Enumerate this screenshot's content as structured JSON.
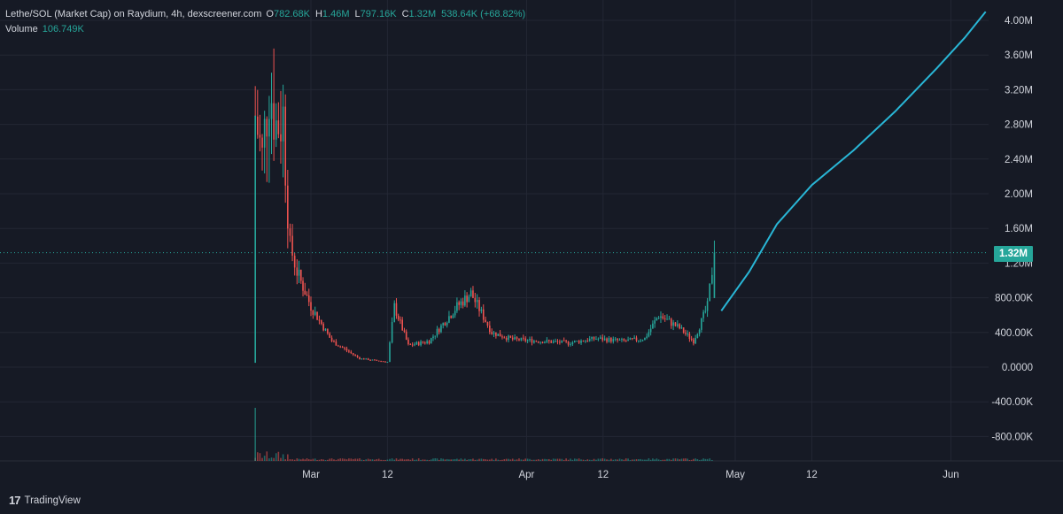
{
  "legend": {
    "title": "Lethe/SOL (Market Cap) on Raydium, 4h, dexscreener.com",
    "o_key": "O",
    "o_val": "782.68K",
    "h_key": "H",
    "h_val": "1.46M",
    "l_key": "L",
    "l_val": "797.16K",
    "c_key": "C",
    "c_val": "1.32M",
    "change": "538.64K (+68.82%)",
    "volume_label": "Volume",
    "volume_val": "106.749K"
  },
  "price_badge": "1.32M",
  "brand": "TradingView",
  "colors": {
    "up": "#26a69a",
    "down": "#ef5350",
    "projection": "#29b6d6",
    "background": "#161a25",
    "grid": "#232734"
  },
  "chart_data": {
    "type": "line",
    "series": [
      {
        "kind": "candlestick-approx",
        "x": [
          "2024-02-22",
          "2024-02-23",
          "2024-02-24",
          "2024-02-25",
          "2024-02-26",
          "2024-02-27",
          "2024-02-28",
          "2024-03-01",
          "2024-03-04",
          "2024-03-08",
          "2024-03-12",
          "2024-03-13",
          "2024-03-15",
          "2024-03-18",
          "2024-03-20",
          "2024-03-22",
          "2024-03-24",
          "2024-03-27",
          "2024-03-30",
          "2024-04-03",
          "2024-04-07",
          "2024-04-11",
          "2024-04-15",
          "2024-04-18",
          "2024-04-20",
          "2024-04-23",
          "2024-04-25",
          "2024-04-27",
          "2024-04-28"
        ],
        "values": [
          2900000,
          2400000,
          3300000,
          2800000,
          2900000,
          1400000,
          1100000,
          700000,
          300000,
          100000,
          60000,
          700000,
          250000,
          300000,
          500000,
          700000,
          850000,
          400000,
          320000,
          300000,
          280000,
          330000,
          300000,
          330000,
          600000,
          450000,
          300000,
          700000,
          1320000
        ]
      },
      {
        "kind": "projection",
        "x": [
          "2024-04-29",
          "2024-05-03",
          "2024-05-07",
          "2024-05-12",
          "2024-05-18",
          "2024-05-24",
          "2024-05-30",
          "2024-06-03",
          "2024-06-06"
        ],
        "values": [
          650000,
          1100000,
          1650000,
          2100000,
          2500000,
          2950000,
          3450000,
          3800000,
          4100000
        ]
      }
    ],
    "current_price": 1320000,
    "high": 1460000,
    "low": 797160,
    "ylim": [
      -950000,
      4150000
    ],
    "y_ticks": [
      "4.00M",
      "3.60M",
      "3.20M",
      "2.80M",
      "2.40M",
      "2.00M",
      "1.60M",
      "1.20M",
      "800.00K",
      "400.00K",
      "0.0000",
      "-400.00K",
      "-800.00K"
    ],
    "y_tick_values": [
      4000000,
      3600000,
      3200000,
      2800000,
      2400000,
      2000000,
      1600000,
      1200000,
      800000,
      400000,
      0,
      -400000,
      -800000
    ],
    "x_ticks": [
      "Mar",
      "12",
      "Apr",
      "12",
      "May",
      "12",
      "Jun"
    ],
    "x_tick_dates": [
      "2024-03-01",
      "2024-03-12",
      "2024-04-01",
      "2024-04-12",
      "2024-05-01",
      "2024-05-12",
      "2024-06-01"
    ],
    "grid": true
  }
}
